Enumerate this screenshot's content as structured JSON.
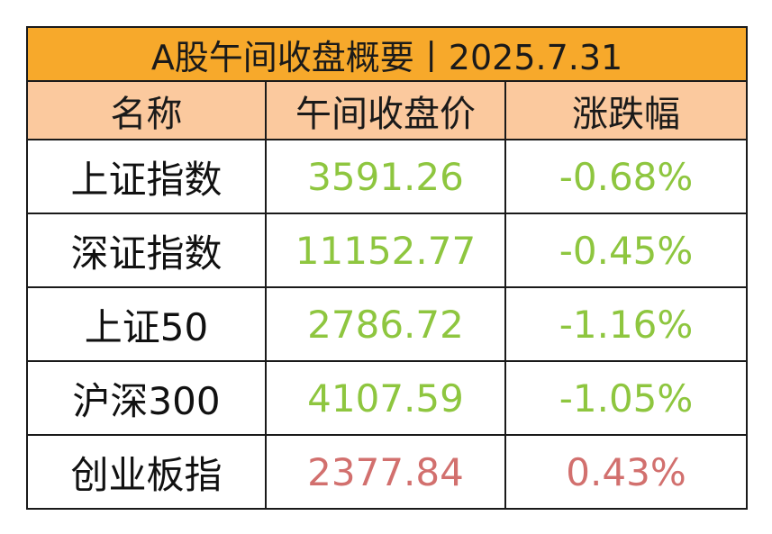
{
  "title": "A股午间收盘概要丨2025.7.31",
  "headers": {
    "name": "名称",
    "price": "午间收盘价",
    "change": "涨跌幅"
  },
  "colors": {
    "title_bg": "#f7a92b",
    "header_bg": "#fbc99e",
    "down": "#8ec63f",
    "up": "#d2706e"
  },
  "rows": [
    {
      "name": "上证指数",
      "price": "3591.26",
      "change": "-0.68%",
      "direction": "down"
    },
    {
      "name": "深证指数",
      "price": "11152.77",
      "change": "-0.45%",
      "direction": "down"
    },
    {
      "name": "上证50",
      "price": "2786.72",
      "change": "-1.16%",
      "direction": "down"
    },
    {
      "name": "沪深300",
      "price": "4107.59",
      "change": "-1.05%",
      "direction": "down"
    },
    {
      "name": "创业板指",
      "price": "2377.84",
      "change": "0.43%",
      "direction": "up"
    }
  ]
}
